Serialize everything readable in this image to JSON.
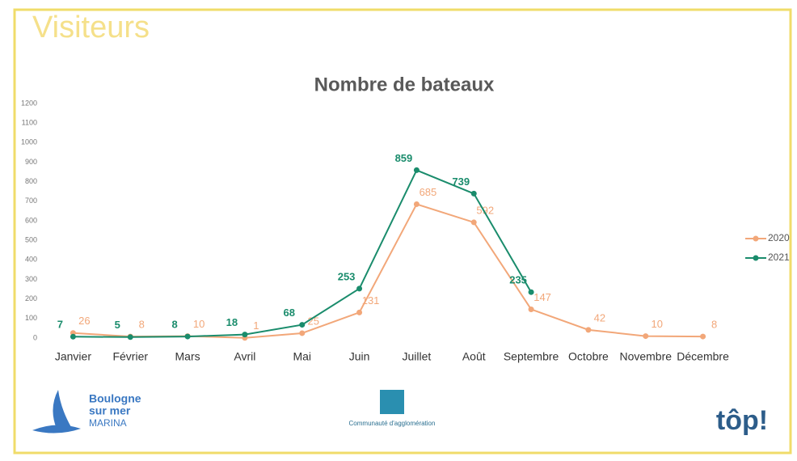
{
  "slide_title": "Visiteurs",
  "chart_data": {
    "type": "line",
    "title": "Nombre de bateaux",
    "categories": [
      "Janvier",
      "Février",
      "Mars",
      "Avril",
      "Mai",
      "Juin",
      "Juillet",
      "Août",
      "Septembre",
      "Octobre",
      "Novembre",
      "Décembre"
    ],
    "series": [
      {
        "name": "2020",
        "color": "#f2a779",
        "values": [
          26,
          8,
          10,
          1,
          25,
          131,
          685,
          592,
          147,
          42,
          10,
          8
        ]
      },
      {
        "name": "2021",
        "color": "#1a8c6c",
        "values": [
          7,
          5,
          8,
          18,
          68,
          253,
          859,
          739,
          235,
          null,
          null,
          null
        ]
      }
    ],
    "ylim": [
      0,
      1200
    ],
    "yticks": [
      0,
      100,
      200,
      300,
      400,
      500,
      600,
      700,
      800,
      900,
      1000,
      1100,
      1200
    ],
    "grid": false,
    "legend": "right"
  },
  "logos": [
    "Boulogne",
    "sur mer",
    "MARINA",
    "Communauté d'agglomération",
    "tôp!"
  ]
}
